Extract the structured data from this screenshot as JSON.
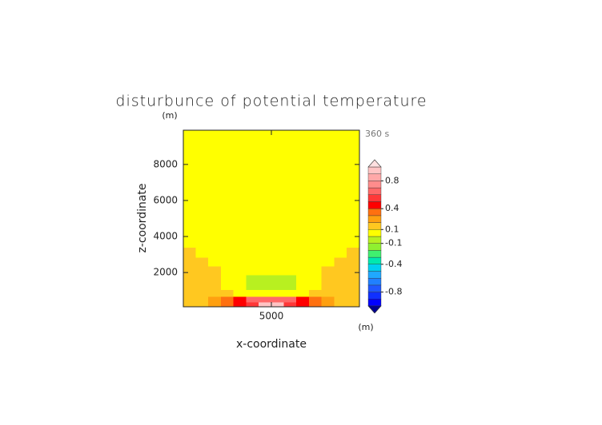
{
  "chart_data": {
    "type": "contour",
    "title": "disturbunce of potential temperature",
    "x_label": "x-coordinate",
    "y_label": "z-coordinate",
    "x_unit": "(m)",
    "y_unit": "(m)",
    "time_label": "360 s",
    "x": [
      450,
      1150,
      1850,
      2550,
      3250,
      3950,
      4650,
      5350,
      6050,
      6750,
      7450,
      8150,
      8850,
      9550
    ],
    "z": [
      200,
      500,
      850,
      1250,
      1650,
      2100,
      2600,
      3100,
      3700,
      4500,
      5500,
      6700,
      8000,
      9300
    ],
    "values": [
      [
        0.15,
        0.15,
        0.25,
        0.35,
        0.45,
        0.55,
        0.9,
        0.9,
        0.55,
        0.45,
        0.35,
        0.25,
        0.15,
        0.15
      ],
      [
        0.15,
        0.15,
        0.2,
        0.35,
        0.45,
        0.6,
        0.65,
        0.65,
        0.6,
        0.45,
        0.35,
        0.2,
        0.15,
        0.15
      ],
      [
        0.15,
        0.15,
        0.12,
        0.12,
        0.08,
        0.05,
        0.05,
        0.05,
        0.05,
        0.08,
        0.12,
        0.12,
        0.15,
        0.15
      ],
      [
        0.15,
        0.15,
        0.12,
        0.05,
        0.02,
        -0.05,
        -0.05,
        -0.05,
        -0.05,
        0.02,
        0.05,
        0.12,
        0.15,
        0.15
      ],
      [
        0.15,
        0.15,
        0.12,
        0.05,
        0.02,
        -0.05,
        -0.05,
        -0.05,
        -0.05,
        0.02,
        0.05,
        0.12,
        0.15,
        0.15
      ],
      [
        0.15,
        0.15,
        0.12,
        0.05,
        0.02,
        0.02,
        0.02,
        0.02,
        0.02,
        0.02,
        0.05,
        0.12,
        0.15,
        0.15
      ],
      [
        0.15,
        0.12,
        0.05,
        0.02,
        0.02,
        0.02,
        0.02,
        0.02,
        0.02,
        0.02,
        0.02,
        0.05,
        0.12,
        0.15
      ],
      [
        0.12,
        0.05,
        0.02,
        0.02,
        0.02,
        0.02,
        0.02,
        0.02,
        0.02,
        0.02,
        0.02,
        0.02,
        0.05,
        0.12
      ],
      [
        0.02,
        0.02,
        0.02,
        0.02,
        0.02,
        0.02,
        0.02,
        0.02,
        0.02,
        0.02,
        0.02,
        0.02,
        0.02,
        0.02
      ],
      [
        0.02,
        0.02,
        0.02,
        0.02,
        0.02,
        0.02,
        0.02,
        0.02,
        0.02,
        0.02,
        0.02,
        0.02,
        0.02,
        0.02
      ],
      [
        0.02,
        0.02,
        0.02,
        0.02,
        0.02,
        0.02,
        0.02,
        0.02,
        0.02,
        0.02,
        0.02,
        0.02,
        0.02,
        0.02
      ],
      [
        0.02,
        0.02,
        0.02,
        0.02,
        0.02,
        0.02,
        0.02,
        0.02,
        0.02,
        0.02,
        0.02,
        0.02,
        0.02,
        0.02
      ],
      [
        0.02,
        0.02,
        0.02,
        0.02,
        0.02,
        0.02,
        0.02,
        0.02,
        0.02,
        0.02,
        0.02,
        0.02,
        0.02,
        0.02
      ],
      [
        0.02,
        0.02,
        0.02,
        0.02,
        0.02,
        0.02,
        0.02,
        0.02,
        0.02,
        0.02,
        0.02,
        0.02,
        0.02,
        0.02
      ]
    ],
    "xlim": [
      100,
      9900
    ],
    "ylim": [
      100,
      9900
    ],
    "xticks": [
      5000
    ],
    "yticks": [
      2000,
      4000,
      6000,
      8000
    ],
    "levels": [
      -1,
      -0.9,
      -0.8,
      -0.7,
      -0.6,
      -0.5,
      -0.4,
      -0.3,
      -0.2,
      -0.1,
      0,
      0.1,
      0.2,
      0.3,
      0.4,
      0.5,
      0.6,
      0.7,
      0.8,
      0.9,
      1
    ],
    "colors": [
      "#000090",
      "#0000ff",
      "#1030ff",
      "#2058ff",
      "#2080ff",
      "#20a8ff",
      "#00d0f0",
      "#00e8b0",
      "#40f070",
      "#90f030",
      "#b8f020",
      "#ffff00",
      "#ffc820",
      "#ffa010",
      "#ff7010",
      "#ff0000",
      "#ff3838",
      "#ff6868",
      "#ff8c8c",
      "#ffa8a8",
      "#ffc4c4",
      "#ffe0e0"
    ],
    "colorbar_ticks": [
      0.8,
      0.4,
      0.1,
      -0.1,
      -0.4,
      -0.8
    ]
  }
}
